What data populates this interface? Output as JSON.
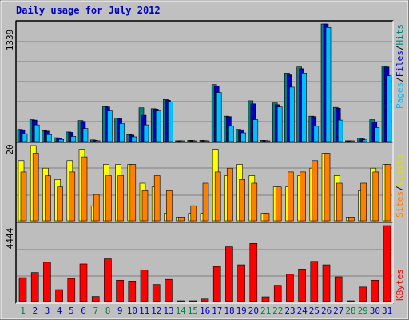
{
  "title": "Daily usage for July 2012",
  "colors": {
    "background": "#c0c0c0",
    "frame": "#808080",
    "plot_bg": "#bdbdbd",
    "gridline": "#808080",
    "hits": "#008080",
    "files": "#0000c0",
    "pages": "#00c0ff",
    "visits": "#ffff00",
    "sites": "#ff8000",
    "kbytes": "#ff0000",
    "title": "#0000c0",
    "weekday_label": "#0000c0",
    "weekend_label": "#008040"
  },
  "panels": {
    "top": {
      "max_label": "1339",
      "legend": [
        "Pages",
        "Files",
        "Hits"
      ]
    },
    "middle": {
      "max_label": "20",
      "legend": [
        "Sites",
        "Visits"
      ]
    },
    "bottom": {
      "max_label": "4444",
      "legend": [
        "KBytes"
      ]
    }
  },
  "chart_data": [
    {
      "type": "bar",
      "title": "Daily usage for July 2012",
      "ymax_label": "1339",
      "ylim": [
        0,
        1339
      ],
      "categories": [
        "1",
        "2",
        "3",
        "4",
        "5",
        "6",
        "7",
        "8",
        "9",
        "10",
        "11",
        "12",
        "13",
        "14",
        "15",
        "16",
        "17",
        "18",
        "19",
        "20",
        "21",
        "22",
        "23",
        "24",
        "25",
        "26",
        "27",
        "28",
        "29",
        "30",
        "31"
      ],
      "weekend_days": [
        "1",
        "7",
        "8",
        "14",
        "15",
        "21",
        "22",
        "28",
        "29"
      ],
      "series": [
        {
          "name": "Hits",
          "color": "#008080",
          "values": [
            140,
            250,
            125,
            45,
            110,
            240,
            20,
            400,
            270,
            80,
            385,
            375,
            480,
            10,
            15,
            15,
            650,
            290,
            140,
            465,
            15,
            440,
            780,
            850,
            290,
            1339,
            390,
            10,
            40,
            250,
            860
          ]
        },
        {
          "name": "Files",
          "color": "#0000c0",
          "values": [
            135,
            245,
            120,
            40,
            105,
            230,
            15,
            395,
            260,
            75,
            300,
            370,
            470,
            10,
            12,
            12,
            630,
            285,
            135,
            430,
            12,
            420,
            760,
            830,
            285,
            1339,
            380,
            8,
            30,
            220,
            850
          ]
        },
        {
          "name": "Pages",
          "color": "#00c0ff",
          "values": [
            90,
            190,
            80,
            25,
            60,
            150,
            10,
            350,
            205,
            55,
            190,
            350,
            450,
            5,
            5,
            5,
            560,
            175,
            100,
            250,
            5,
            395,
            620,
            780,
            175,
            1300,
            245,
            5,
            20,
            160,
            750
          ]
        }
      ]
    },
    {
      "type": "bar",
      "ymax_label": "20",
      "ylim": [
        0,
        20
      ],
      "categories": [
        "1",
        "2",
        "3",
        "4",
        "5",
        "6",
        "7",
        "8",
        "9",
        "10",
        "11",
        "12",
        "13",
        "14",
        "15",
        "16",
        "17",
        "18",
        "19",
        "20",
        "21",
        "22",
        "23",
        "24",
        "25",
        "26",
        "27",
        "28",
        "29",
        "30",
        "31"
      ],
      "series": [
        {
          "name": "Visits",
          "color": "#ffff00",
          "values": [
            16,
            20,
            14,
            11,
            16,
            19,
            4,
            15,
            15,
            15,
            10,
            9,
            2,
            1,
            2,
            2,
            19,
            12,
            15,
            12,
            2,
            9,
            9,
            12,
            14,
            18,
            12,
            1,
            8,
            14,
            15
          ]
        },
        {
          "name": "Sites",
          "color": "#ff8000",
          "values": [
            13,
            18,
            12,
            9,
            13,
            17,
            7,
            12,
            12,
            15,
            8,
            12,
            8,
            1,
            4,
            10,
            13,
            14,
            11,
            10,
            2,
            9,
            13,
            13,
            16,
            18,
            10,
            1,
            10,
            13,
            15
          ]
        }
      ]
    },
    {
      "type": "bar",
      "ymax_label": "4444",
      "ylim": [
        0,
        4444
      ],
      "categories": [
        "1",
        "2",
        "3",
        "4",
        "5",
        "6",
        "7",
        "8",
        "9",
        "10",
        "11",
        "12",
        "13",
        "14",
        "15",
        "16",
        "17",
        "18",
        "19",
        "20",
        "21",
        "22",
        "23",
        "24",
        "25",
        "26",
        "27",
        "28",
        "29",
        "30",
        "31"
      ],
      "series": [
        {
          "name": "KBytes",
          "color": "#ff0000",
          "values": [
            1400,
            1700,
            2300,
            700,
            1350,
            2200,
            300,
            2500,
            1250,
            1200,
            1850,
            1000,
            1300,
            20,
            20,
            150,
            2050,
            3200,
            2150,
            3400,
            280,
            950,
            1600,
            1900,
            2350,
            2150,
            1450,
            20,
            850,
            1250,
            4444
          ]
        }
      ]
    }
  ]
}
